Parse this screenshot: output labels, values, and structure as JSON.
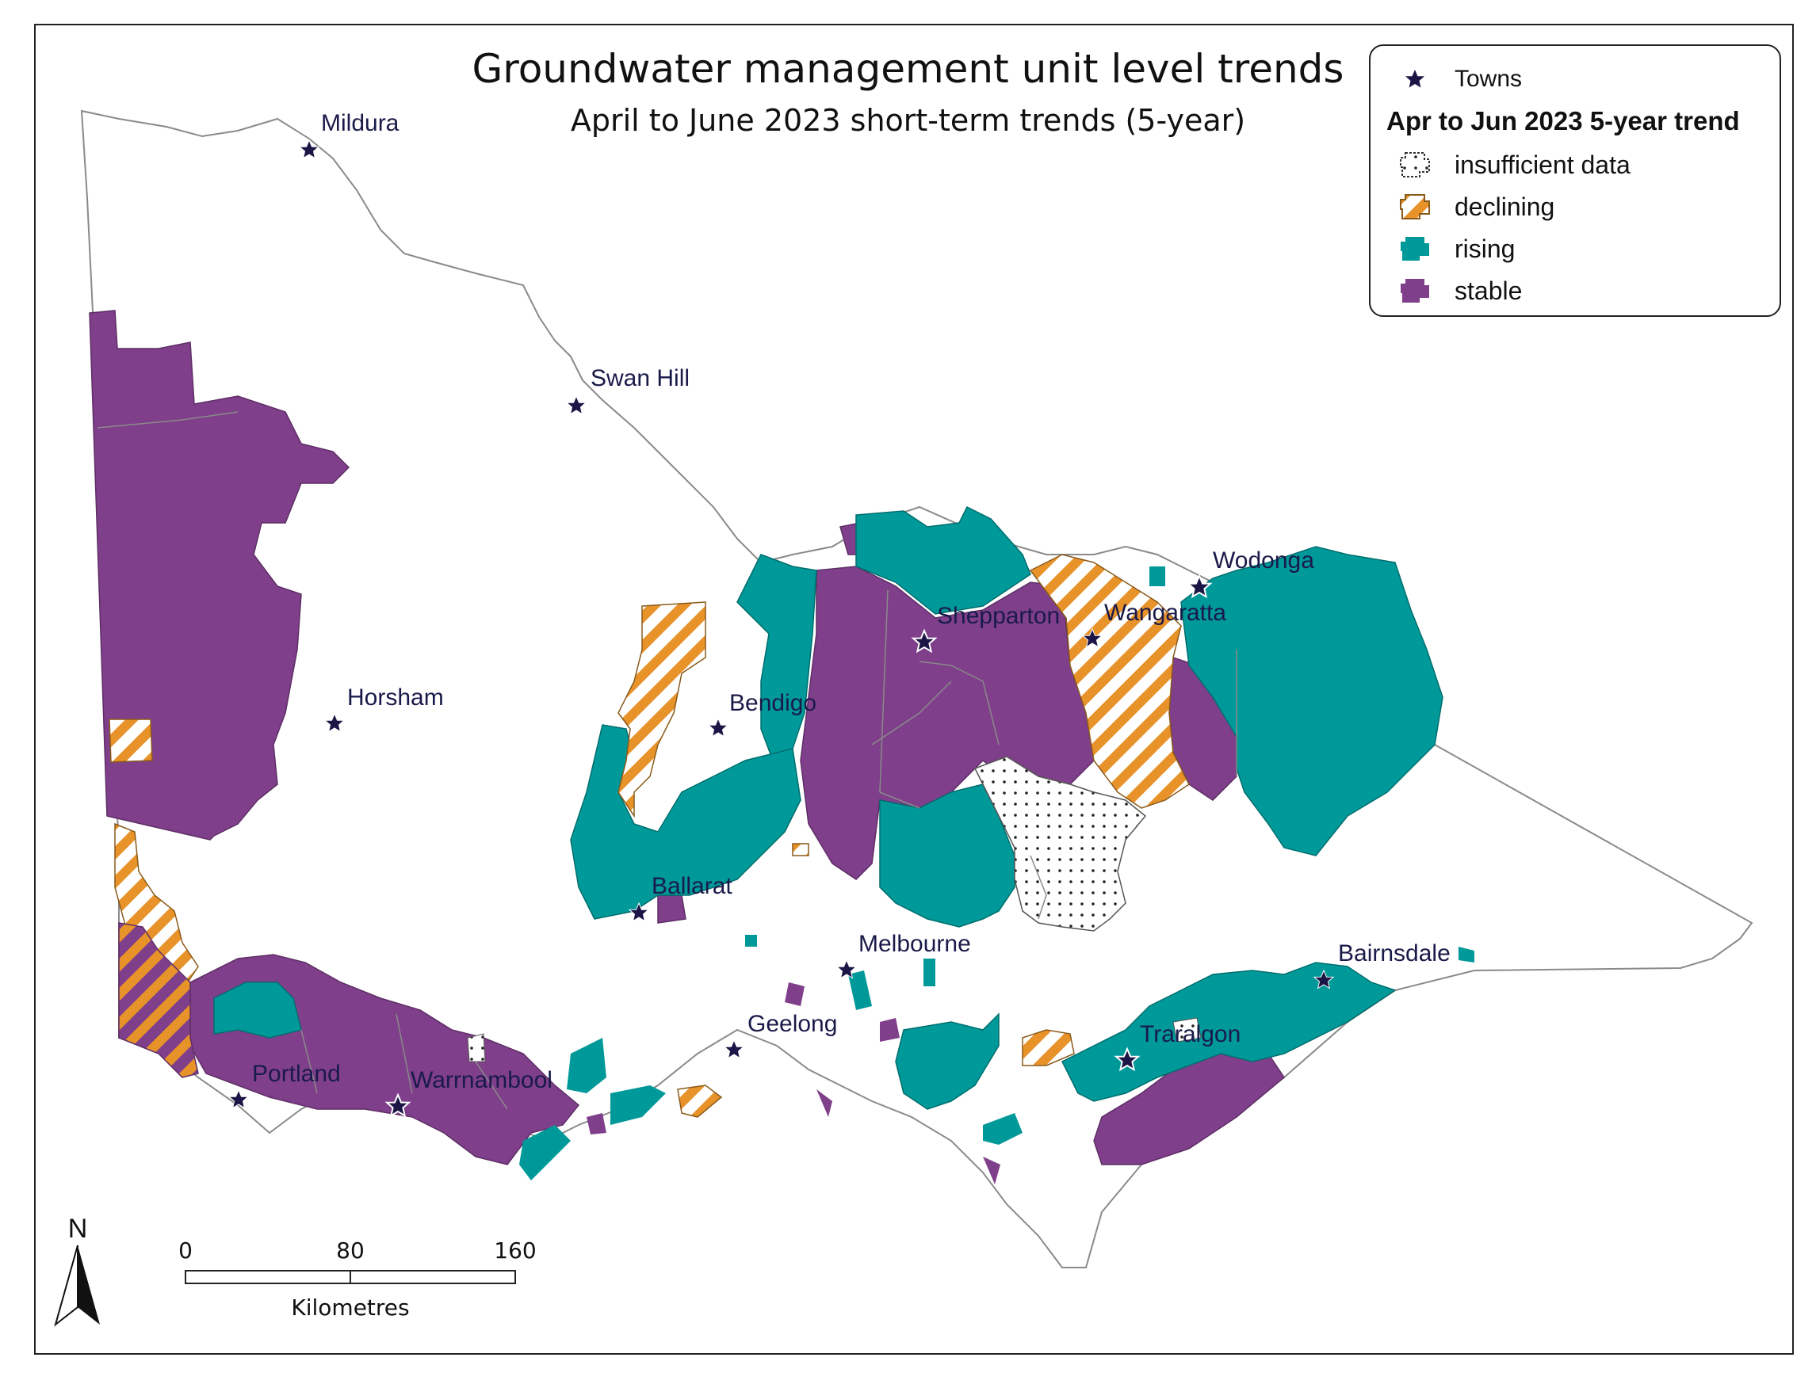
{
  "title": "Groundwater management unit level trends",
  "subtitle": "April to June 2023 short-term trends (5-year)",
  "legend": {
    "towns_label": "Towns",
    "heading": "Apr to Jun 2023 5-year trend",
    "items": [
      {
        "label": "insufficient data",
        "pattern": "dots"
      },
      {
        "label": "declining",
        "pattern": "stripes"
      },
      {
        "label": "rising",
        "pattern": "solid"
      },
      {
        "label": "stable",
        "pattern": "solid"
      }
    ]
  },
  "colors": {
    "rising": "#009999",
    "stable": "#7f3f8a",
    "declining": "#e8922a",
    "town_star": "#1b1645",
    "boundary": "#8a8a8a"
  },
  "towns": [
    "Mildura",
    "Swan Hill",
    "Horsham",
    "Bendigo",
    "Shepparton",
    "Wangaratta",
    "Wodonga",
    "Ballarat",
    "Melbourne",
    "Geelong",
    "Portland",
    "Warrnambool",
    "Traralgon",
    "Bairnsdale"
  ],
  "north_label": "N",
  "scale": {
    "ticks": [
      "0",
      "80",
      "160"
    ],
    "unit": "Kilometres"
  }
}
